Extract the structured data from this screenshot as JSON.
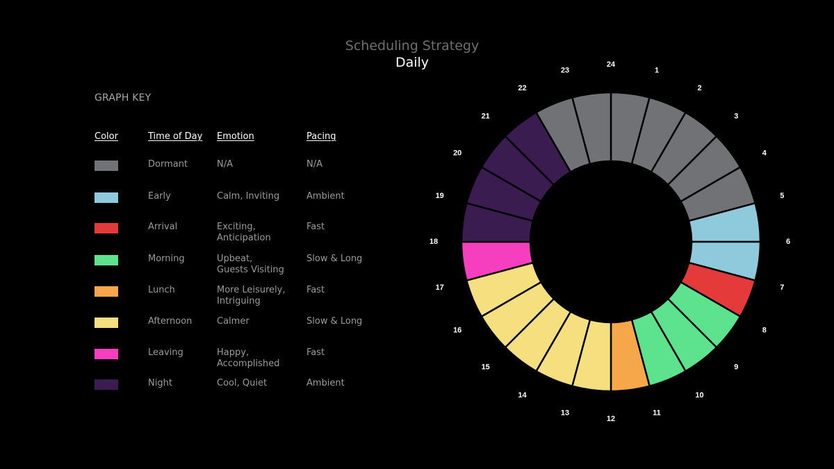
{
  "chart_data": {
    "type": "pie",
    "title": "Scheduling Strategy",
    "subtitle": "Daily",
    "key_title": "GRAPH KEY",
    "columns": [
      "Color",
      "Time of Day",
      "Emotion",
      "Pacing"
    ],
    "legend": [
      {
        "key": "dormant",
        "time": "Dormant",
        "emotion": "N/A",
        "pacing": "N/A",
        "color": "#717276"
      },
      {
        "key": "early",
        "time": "Early",
        "emotion": "Calm, Inviting",
        "pacing": "Ambient",
        "color": "#8ecadb"
      },
      {
        "key": "arrival",
        "time": "Arrival",
        "emotion": "Exciting,\nAnticipation",
        "pacing": "Fast",
        "color": "#e53a3a"
      },
      {
        "key": "morning",
        "time": "Morning",
        "emotion": "Upbeat,\nGuests Visiting",
        "pacing": "Slow & Long",
        "color": "#5de38d"
      },
      {
        "key": "lunch",
        "time": "Lunch",
        "emotion": "More Leisurely,\nIntriguing",
        "pacing": "Fast",
        "color": "#f5a74a"
      },
      {
        "key": "afternoon",
        "time": "Afternoon",
        "emotion": "Calmer",
        "pacing": "Slow & Long",
        "color": "#f5df7e"
      },
      {
        "key": "leaving",
        "time": "Leaving",
        "emotion": "Happy,\nAccomplished",
        "pacing": "Fast",
        "color": "#f53fbe"
      },
      {
        "key": "night",
        "time": "Night",
        "emotion": "Cool, Quiet",
        "pacing": "Ambient",
        "color": "#3a1c50"
      }
    ],
    "hours": [
      {
        "hour": "1",
        "category": "dormant"
      },
      {
        "hour": "2",
        "category": "dormant"
      },
      {
        "hour": "3",
        "category": "dormant"
      },
      {
        "hour": "4",
        "category": "dormant"
      },
      {
        "hour": "5",
        "category": "dormant"
      },
      {
        "hour": "6",
        "category": "early"
      },
      {
        "hour": "7",
        "category": "early"
      },
      {
        "hour": "8",
        "category": "arrival"
      },
      {
        "hour": "9",
        "category": "morning"
      },
      {
        "hour": "10",
        "category": "morning"
      },
      {
        "hour": "11",
        "category": "morning"
      },
      {
        "hour": "12",
        "category": "lunch"
      },
      {
        "hour": "13",
        "category": "afternoon"
      },
      {
        "hour": "14",
        "category": "afternoon"
      },
      {
        "hour": "15",
        "category": "afternoon"
      },
      {
        "hour": "16",
        "category": "afternoon"
      },
      {
        "hour": "17",
        "category": "afternoon"
      },
      {
        "hour": "18",
        "category": "leaving"
      },
      {
        "hour": "19",
        "category": "night"
      },
      {
        "hour": "20",
        "category": "night"
      },
      {
        "hour": "21",
        "category": "night"
      },
      {
        "hour": "22",
        "category": "night"
      },
      {
        "hour": "23",
        "category": "dormant"
      },
      {
        "hour": "24",
        "category": "dormant"
      }
    ]
  }
}
